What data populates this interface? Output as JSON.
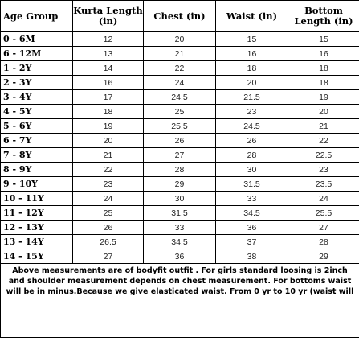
{
  "table": {
    "headers": [
      "Age Group",
      "Kurta Length (in)",
      "Chest (in)",
      "Waist (in)",
      "Bottom Length (in)"
    ],
    "rows": [
      [
        "0 - 6M",
        "12",
        "20",
        "15",
        "15"
      ],
      [
        "6 - 12M",
        "13",
        "21",
        "16",
        "16"
      ],
      [
        "1 - 2Y",
        "14",
        "22",
        "18",
        "18"
      ],
      [
        "2 - 3Y",
        "16",
        "24",
        "20",
        "18"
      ],
      [
        "3 - 4Y",
        "17",
        "24.5",
        "21.5",
        "19"
      ],
      [
        "4 - 5Y",
        "18",
        "25",
        "23",
        "20"
      ],
      [
        "5 - 6Y",
        "19",
        "25.5",
        "24.5",
        "21"
      ],
      [
        "6 - 7Y",
        "20",
        "26",
        "26",
        "22"
      ],
      [
        "7 - 8Y",
        "21",
        "27",
        "28",
        "22.5"
      ],
      [
        "8 - 9Y",
        "22",
        "28",
        "30",
        "23"
      ],
      [
        "9 - 10Y",
        "23",
        "29",
        "31.5",
        "23.5"
      ],
      [
        "10 - 11Y",
        "24",
        "30",
        "33",
        "24"
      ],
      [
        "11 - 12Y",
        "25",
        "31.5",
        "34.5",
        "25.5"
      ],
      [
        "12 - 13Y",
        "26",
        "33",
        "36",
        "27"
      ],
      [
        "13 - 14Y",
        "26.5",
        "34.5",
        "37",
        "28"
      ],
      [
        "14 - 15Y",
        "27",
        "36",
        "38",
        "29"
      ]
    ]
  },
  "note": "Above measurements are of bodyfit outfit . For girls standard loosing is 2inch and shoulder measurement depends on chest measurement. For bottoms waist will be in minus.Because we give elasticated waist. From 0 yr to 10 yr (waist will"
}
